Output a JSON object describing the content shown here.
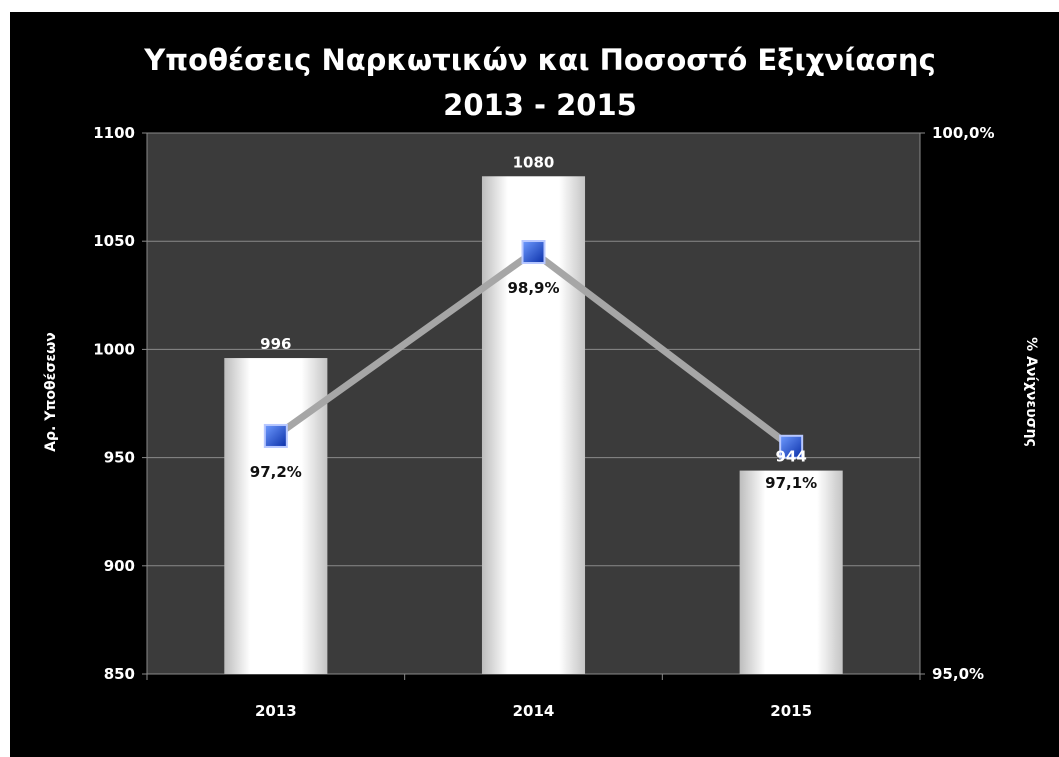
{
  "chart_data": {
    "type": "bar",
    "title": "Υποθέσεις Ναρκωτικών και Ποσοστό Εξιχνίασης",
    "subtitle": "2013 - 2015",
    "categories": [
      "2013",
      "2014",
      "2015"
    ],
    "series": [
      {
        "values": [
          996,
          1080,
          944
        ]
      }
    ],
    "line_series": {
      "values": [
        97.2,
        98.9,
        97.1
      ],
      "labels": [
        "97,2%",
        "98,9%",
        "97,1%"
      ]
    },
    "bar_labels": [
      "996",
      "1080",
      "944"
    ],
    "ylabel": "Αρ. Υποθέσεων",
    "y2label": "% Ανίχνευσης",
    "ylim": [
      850,
      1100
    ],
    "yticks": [
      850,
      900,
      950,
      1000,
      1050,
      1100
    ],
    "ytick_labels": [
      "850",
      "900",
      "950",
      "1000",
      "1050",
      "1100"
    ],
    "y2lim": [
      95.0,
      100.0
    ],
    "y2ticks": [
      95.0,
      100.0
    ],
    "y2tick_labels": [
      "95,0%",
      "100,0%"
    ],
    "grid": true,
    "legend": "none",
    "colors": {
      "background": "#000000",
      "plot_area": "#3b3b3b",
      "grid": "#8a8a8a",
      "bar_light": "#ffffff",
      "bar_dark": "#c8c8c8",
      "line": "#a6a6a6",
      "marker": "#1f4fd6",
      "text": "#ffffff"
    }
  }
}
